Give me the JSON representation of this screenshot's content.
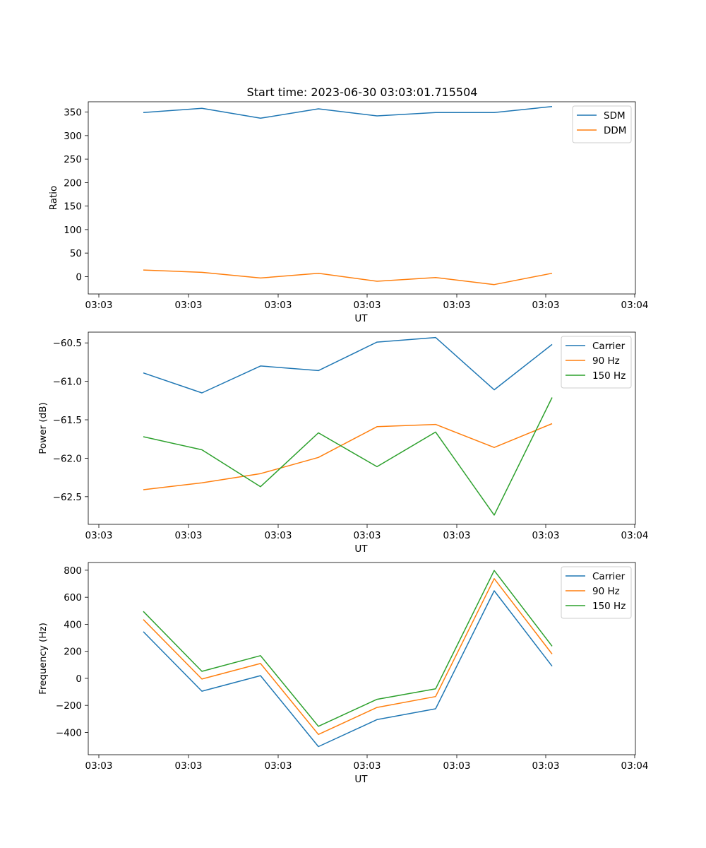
{
  "figure": {
    "title": "Start time: 2023-06-30 03:03:01.715504"
  },
  "chart_data": [
    {
      "type": "line",
      "title": "Start time: 2023-06-30 03:03:01.715504",
      "xlabel": "UT",
      "ylabel": "Ratio",
      "x_tick_labels": [
        "03:03",
        "03:03",
        "03:03",
        "03:03",
        "03:03",
        "03:03",
        "03:04"
      ],
      "y_ticks": [
        0,
        50,
        100,
        150,
        200,
        250,
        300,
        350
      ],
      "ylim": [
        -37,
        372
      ],
      "legend_position": "top-right",
      "grid": false,
      "series": [
        {
          "name": "SDM",
          "color": "#1f77b4",
          "values": [
            349,
            358,
            337,
            357,
            342,
            349,
            349,
            362
          ]
        },
        {
          "name": "DDM",
          "color": "#ff7f0e",
          "values": [
            14,
            9,
            -3,
            7,
            -10,
            -2,
            -17,
            7
          ]
        }
      ]
    },
    {
      "type": "line",
      "xlabel": "UT",
      "ylabel": "Power (dB)",
      "x_tick_labels": [
        "03:03",
        "03:03",
        "03:03",
        "03:03",
        "03:03",
        "03:03",
        "03:04"
      ],
      "y_ticks": [
        -62.5,
        -62.0,
        -61.5,
        -61.0,
        -60.5
      ],
      "y_tick_labels": [
        "−62.5",
        "−62.0",
        "−61.5",
        "−61.0",
        "−60.5"
      ],
      "ylim": [
        -62.86,
        -60.36
      ],
      "legend_position": "top-right",
      "grid": false,
      "series": [
        {
          "name": "Carrier",
          "color": "#1f77b4",
          "values": [
            -60.89,
            -61.15,
            -60.8,
            -60.86,
            -60.49,
            -60.43,
            -61.11,
            -60.52
          ]
        },
        {
          "name": "90 Hz",
          "color": "#ff7f0e",
          "values": [
            -62.41,
            -62.32,
            -62.2,
            -61.99,
            -61.59,
            -61.56,
            -61.86,
            -61.55
          ]
        },
        {
          "name": "150 Hz",
          "color": "#2ca02c",
          "values": [
            -61.72,
            -61.89,
            -62.37,
            -61.67,
            -62.11,
            -61.66,
            -62.74,
            -61.21
          ]
        }
      ]
    },
    {
      "type": "line",
      "xlabel": "UT",
      "ylabel": "Frequency (Hz)",
      "x_tick_labels": [
        "03:03",
        "03:03",
        "03:03",
        "03:03",
        "03:03",
        "03:03",
        "03:04"
      ],
      "y_ticks": [
        -400,
        -200,
        0,
        200,
        400,
        600,
        800
      ],
      "y_tick_labels": [
        "−400",
        "−200",
        "0",
        "200",
        "400",
        "600",
        "800"
      ],
      "ylim": [
        -565,
        857
      ],
      "legend_position": "top-right",
      "grid": false,
      "series": [
        {
          "name": "Carrier",
          "color": "#1f77b4",
          "values": [
            345,
            -95,
            20,
            -505,
            -305,
            -225,
            648,
            90
          ]
        },
        {
          "name": "90 Hz",
          "color": "#ff7f0e",
          "values": [
            435,
            -5,
            110,
            -415,
            -215,
            -135,
            738,
            180
          ]
        },
        {
          "name": "150 Hz",
          "color": "#2ca02c",
          "values": [
            495,
            52,
            168,
            -355,
            -155,
            -78,
            798,
            238
          ]
        }
      ]
    }
  ]
}
